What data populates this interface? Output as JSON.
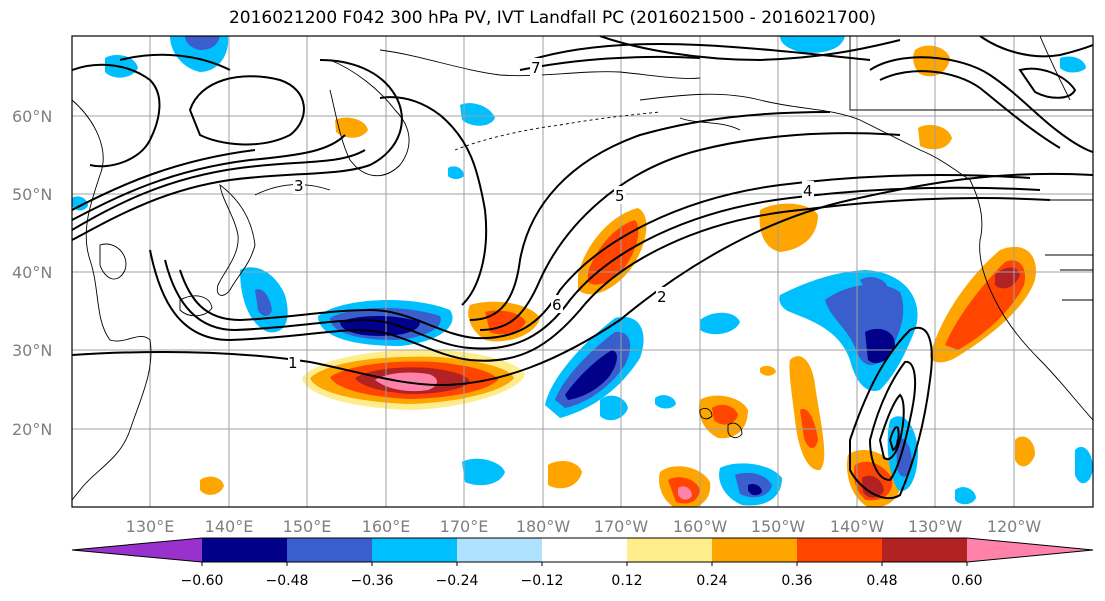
{
  "title": "2016021200 F042 300 hPa PV, IVT Landfall PC (2016021500 - 2016021700)",
  "lat_labels": [
    "60°N",
    "50°N",
    "40°N",
    "30°N",
    "20°N"
  ],
  "lon_labels": [
    "130°E",
    "140°E",
    "150°E",
    "160°E",
    "170°E",
    "180°W",
    "170°W",
    "160°W",
    "150°W",
    "140°W",
    "130°W",
    "120°W"
  ],
  "colorbar": {
    "tick_labels": [
      "−0.60",
      "−0.48",
      "−0.36",
      "−0.24",
      "−0.12",
      "0.12",
      "0.24",
      "0.36",
      "0.48",
      "0.60"
    ],
    "colors": [
      "#9932cc",
      "#00008b",
      "#3a5fcd",
      "#00bfff",
      "#b0e2ff",
      "#ffffff",
      "#ffec8b",
      "#ffa500",
      "#ff4500",
      "#b22222",
      "#ff82ab"
    ]
  },
  "contour_labels": [
    "1",
    "2",
    "3",
    "4",
    "5",
    "6",
    "7"
  ]
}
